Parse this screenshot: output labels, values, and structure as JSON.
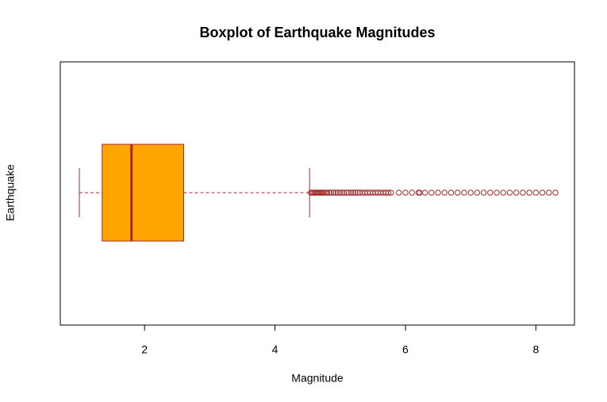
{
  "chart_data": {
    "type": "boxplot",
    "title": "Boxplot of Earthquake Magnitudes",
    "x_label": "Magnitude",
    "y_label": "Earthquake",
    "whisker_low": 1.0,
    "q1": 1.35,
    "median": 1.8,
    "q3": 2.6,
    "whisker_high": 4.53,
    "outliers": [
      4.55,
      4.57,
      4.59,
      4.61,
      4.63,
      4.65,
      4.67,
      4.69,
      4.71,
      4.73,
      4.75,
      4.78,
      4.8,
      4.83,
      4.86,
      4.9,
      4.93,
      4.96,
      5.0,
      5.03,
      5.06,
      5.1,
      5.13,
      5.17,
      5.2,
      5.23,
      5.27,
      5.3,
      5.34,
      5.38,
      5.42,
      5.46,
      5.5,
      5.54,
      5.58,
      5.62,
      5.66,
      5.7,
      5.74,
      5.78,
      5.9,
      6.0,
      6.1,
      6.2,
      6.22,
      6.3,
      6.4,
      6.5,
      6.6,
      6.7,
      6.8,
      6.9,
      7.0,
      7.1,
      7.2,
      7.3,
      7.4,
      7.5,
      7.6,
      7.7,
      7.8,
      7.9,
      8.0,
      8.1,
      8.2,
      8.3
    ],
    "box_color": "#ffa500",
    "line_color": "#a52a2a",
    "xlim": [
      0.708,
      8.592
    ],
    "xticks": [
      2,
      4,
      6,
      8
    ]
  }
}
